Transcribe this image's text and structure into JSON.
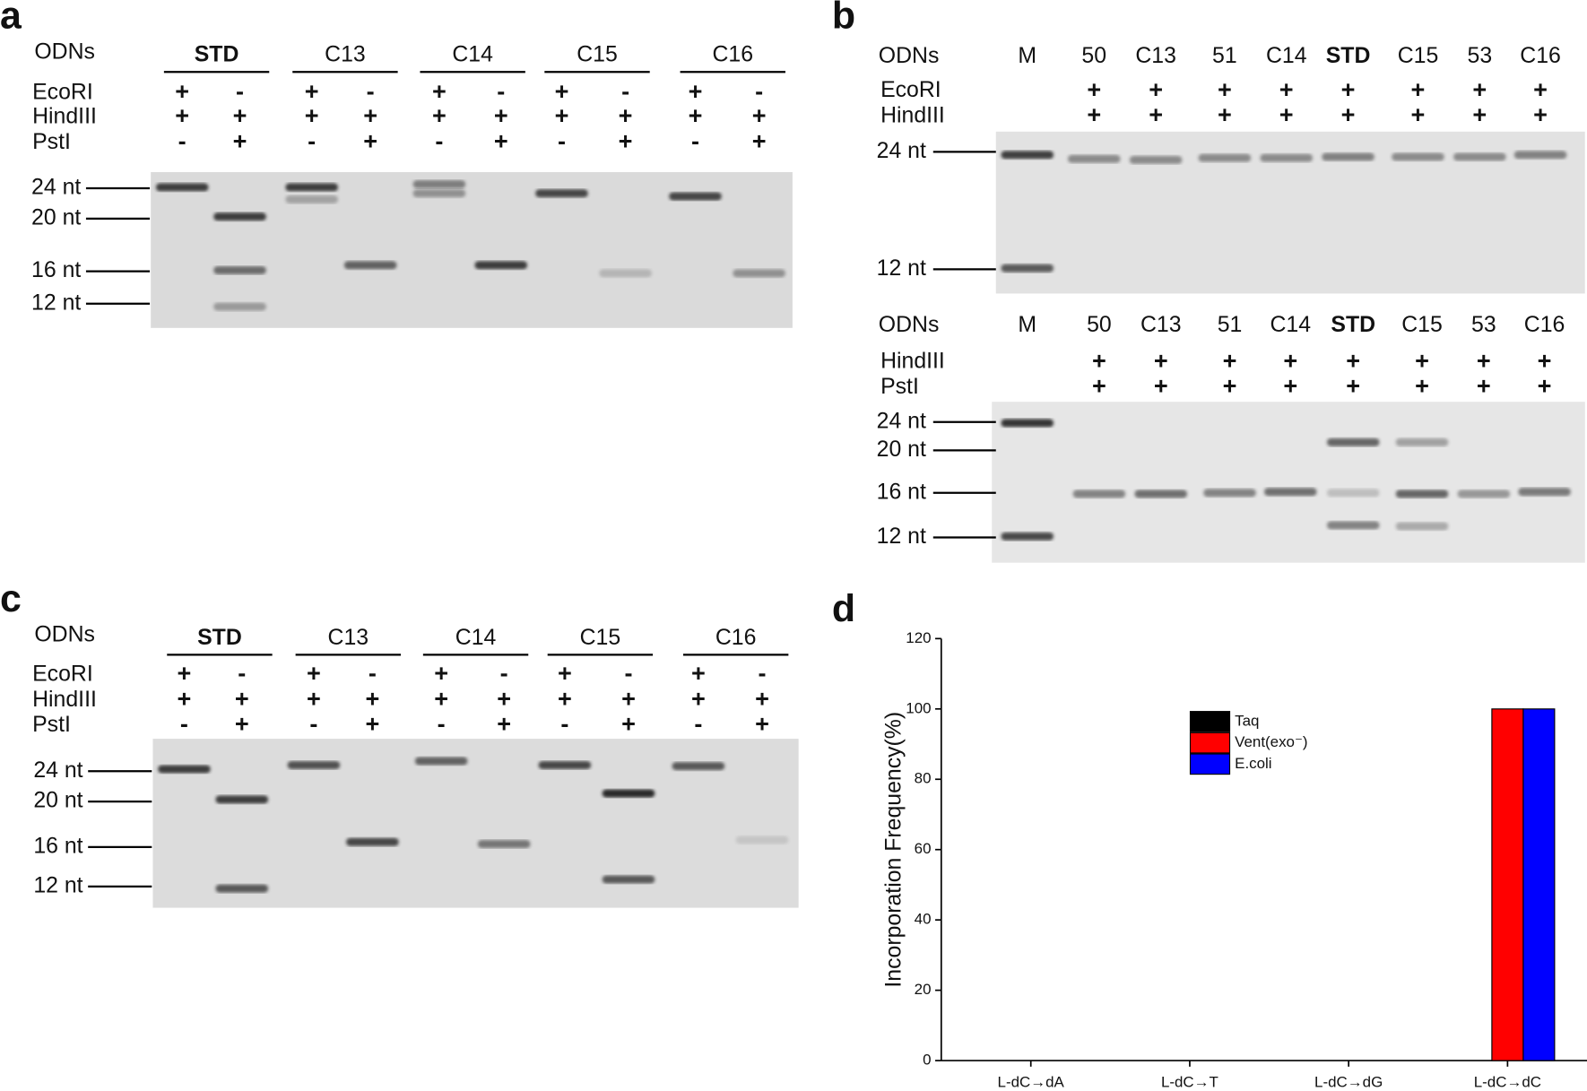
{
  "panels": {
    "a": {
      "label": "a",
      "odns_label": "ODNs",
      "groups": [
        "STD",
        "C13",
        "C14",
        "C15",
        "C16"
      ],
      "rows": [
        {
          "label": "EcoRI",
          "signs": [
            "+",
            "-",
            "+",
            "-",
            "+",
            "-",
            "+",
            "-",
            "+",
            "-"
          ]
        },
        {
          "label": "HindIII",
          "signs": [
            "+",
            "+",
            "+",
            "+",
            "+",
            "+",
            "+",
            "+",
            "+",
            "+"
          ]
        },
        {
          "label": "PstI",
          "signs": [
            "-",
            "+",
            "-",
            "+",
            "-",
            "+",
            "-",
            "+",
            "-",
            "+"
          ]
        }
      ],
      "markers": [
        "24 nt",
        "20 nt",
        "16 nt",
        "12 nt"
      ]
    },
    "b": {
      "label": "b",
      "top": {
        "odns_label": "ODNs",
        "lanes": [
          "M",
          "50",
          "C13",
          "51",
          "C14",
          "STD",
          "C15",
          "53",
          "C16"
        ],
        "rows": [
          {
            "label": "EcoRI",
            "signs": [
              "+",
              "+",
              "+",
              "+",
              "+",
              "+",
              "+",
              "+"
            ]
          },
          {
            "label": "HindIII",
            "signs": [
              "+",
              "+",
              "+",
              "+",
              "+",
              "+",
              "+",
              "+"
            ]
          }
        ],
        "markers": [
          "24 nt",
          "12 nt"
        ]
      },
      "bottom": {
        "odns_label": "ODNs",
        "lanes": [
          "M",
          "50",
          "C13",
          "51",
          "C14",
          "STD",
          "C15",
          "53",
          "C16"
        ],
        "rows": [
          {
            "label": "HindIII",
            "signs": [
              "+",
              "+",
              "+",
              "+",
              "+",
              "+",
              "+",
              "+"
            ]
          },
          {
            "label": "PstI",
            "signs": [
              "+",
              "+",
              "+",
              "+",
              "+",
              "+",
              "+",
              "+"
            ]
          }
        ],
        "markers": [
          "24 nt",
          "20 nt",
          "16 nt",
          "12 nt"
        ]
      }
    },
    "c": {
      "label": "c",
      "odns_label": "ODNs",
      "groups": [
        "STD",
        "C13",
        "C14",
        "C15",
        "C16"
      ],
      "rows": [
        {
          "label": "EcoRI",
          "signs": [
            "+",
            "-",
            "+",
            "-",
            "+",
            "-",
            "+",
            "-",
            "+",
            "-"
          ]
        },
        {
          "label": "HindIII",
          "signs": [
            "+",
            "+",
            "+",
            "+",
            "+",
            "+",
            "+",
            "+",
            "+",
            "+"
          ]
        },
        {
          "label": "PstI",
          "signs": [
            "-",
            "+",
            "-",
            "+",
            "-",
            "+",
            "-",
            "+",
            "-",
            "+"
          ]
        }
      ],
      "markers": [
        "24 nt",
        "20 nt",
        "16 nt",
        "12 nt"
      ]
    },
    "d": {
      "label": "d"
    }
  },
  "chart_data": {
    "type": "bar",
    "y_label": "Incorporation Frequency(%)",
    "categories": [
      "L-dC→dA",
      "L-dC→T",
      "L-dC→dG",
      "L-dC→dC"
    ],
    "series": [
      {
        "name": "Taq",
        "color": "#000000",
        "values": [
          0,
          0,
          0,
          0
        ]
      },
      {
        "name": "Vent(exo⁻)",
        "color": "#ff0000",
        "values": [
          0,
          0,
          0,
          100
        ]
      },
      {
        "name": "E.coli",
        "color": "#0000ff",
        "values": [
          0,
          0,
          0,
          100
        ]
      }
    ],
    "ylim": [
      0,
      120
    ],
    "yticks": [
      0,
      20,
      40,
      60,
      80,
      100,
      120
    ]
  }
}
